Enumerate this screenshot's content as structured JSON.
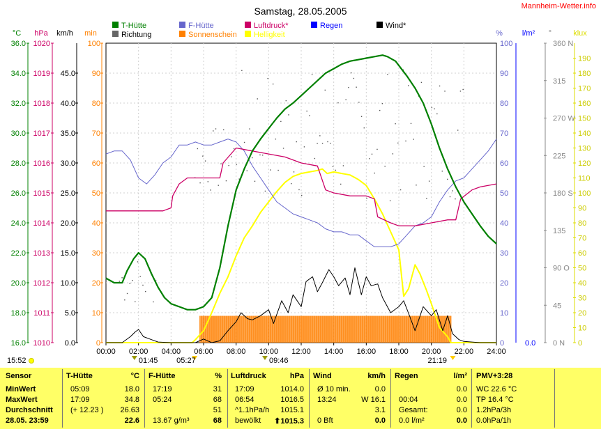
{
  "header": {
    "title": "Samstag, 28.05.2005",
    "site": "Mannheim-Wetter.info"
  },
  "legend": [
    {
      "label": "T-Hütte",
      "color": "#008000"
    },
    {
      "label": "F-Hütte",
      "color": "#6666cc"
    },
    {
      "label": "Luftdruck*",
      "color": "#cc0066"
    },
    {
      "label": "Regen",
      "color": "#0000ff"
    },
    {
      "label": "Wind*",
      "color": "#000000"
    },
    {
      "label": "Richtung",
      "color": "#666666"
    },
    {
      "label": "Sonnenschein",
      "color": "#ff8000"
    },
    {
      "label": "Helligkeit",
      "color": "#ffff00"
    }
  ],
  "axes": {
    "temp_unit": "°C",
    "hpa_unit": "hPa",
    "kmh_unit": "km/h",
    "min_unit": "min",
    "pct_unit": "%",
    "rain_unit": "l/m²",
    "dir_unit": "°",
    "klux_unit": "klux",
    "temp_ticks": [
      "16.0",
      "18.0",
      "20.0",
      "22.0",
      "24.0",
      "26.0",
      "28.0",
      "30.0",
      "32.0",
      "34.0",
      "36.0"
    ],
    "hpa_ticks": [
      "1010",
      "1011",
      "1012",
      "1013",
      "1014",
      "1015",
      "1016",
      "1017",
      "1018",
      "1019",
      "1020"
    ],
    "kmh_ticks": [
      "0.0",
      "5.0",
      "10.0",
      "15.0",
      "20.0",
      "25.0",
      "30.0",
      "35.0",
      "40.0",
      "45.0"
    ],
    "min_ticks": [
      "0",
      "10",
      "20",
      "30",
      "40",
      "50",
      "60",
      "70",
      "80",
      "90",
      "100"
    ],
    "pct_ticks": [
      "0",
      "10",
      "20",
      "30",
      "40",
      "50",
      "60",
      "70",
      "80",
      "90",
      "100"
    ],
    "rain_tick": "0.0",
    "dir_ticks": [
      "0 N",
      "45",
      "90 O",
      "135",
      "180 S",
      "225",
      "270 W",
      "315",
      "360 N"
    ],
    "klux_ticks": [
      "0",
      "10",
      "20",
      "30",
      "40",
      "50",
      "60",
      "70",
      "80",
      "90",
      "100",
      "110",
      "120",
      "130",
      "140",
      "150",
      "160",
      "170",
      "180",
      "190"
    ],
    "x_ticks": [
      "00:00",
      "02:00",
      "04:00",
      "06:00",
      "08:00",
      "10:00",
      "12:00",
      "14:00",
      "16:00",
      "18:00",
      "20:00",
      "22:00",
      "24:00"
    ]
  },
  "annotations": {
    "sunrise_label": "05:27",
    "sunset_label": "21:19",
    "moonset_label": "01:45",
    "moonrise_label": "09:46",
    "last_update": "15:52"
  },
  "chart_data": {
    "type": "line",
    "x_range": [
      "00:00",
      "24:00"
    ],
    "temp_ylim": [
      16,
      36
    ],
    "series": [
      {
        "name": "T-Hütte",
        "unit": "°C",
        "color": "#008000",
        "x": [
          0,
          0.5,
          1,
          1.3,
          1.7,
          2.0,
          2.4,
          2.8,
          3.2,
          3.6,
          4.0,
          4.5,
          5.0,
          5.5,
          6.0,
          6.5,
          7.0,
          7.5,
          8.0,
          8.5,
          9.0,
          9.5,
          10.0,
          10.5,
          11.0,
          11.5,
          12.0,
          12.5,
          13.0,
          13.5,
          14.0,
          14.5,
          15.0,
          15.5,
          16.0,
          16.5,
          17.0,
          17.3,
          17.8,
          18.5,
          19.0,
          19.5,
          20.0,
          20.5,
          21.0,
          21.5,
          22.0,
          22.5,
          23.0,
          23.5,
          24.0
        ],
        "values": [
          20.3,
          20.0,
          20.0,
          20.8,
          21.6,
          22.0,
          21.6,
          20.6,
          19.7,
          19.0,
          18.6,
          18.4,
          18.2,
          18.2,
          18.4,
          19.0,
          21.0,
          23.8,
          26.2,
          27.6,
          28.8,
          29.6,
          30.3,
          31.0,
          31.6,
          32.0,
          32.5,
          33.0,
          33.5,
          34.0,
          34.3,
          34.6,
          34.8,
          34.9,
          35.0,
          35.1,
          35.2,
          35.1,
          34.8,
          33.8,
          33.0,
          32.0,
          30.6,
          29.0,
          27.6,
          26.4,
          25.4,
          24.6,
          23.8,
          23.1,
          22.6
        ]
      },
      {
        "name": "F-Hütte",
        "unit": "%",
        "color": "#6666cc",
        "x": [
          0,
          0.5,
          1.0,
          1.5,
          2.0,
          2.5,
          3.0,
          3.5,
          4.0,
          4.5,
          5.0,
          5.5,
          6.0,
          6.5,
          7.0,
          7.5,
          8.0,
          8.5,
          9.0,
          9.5,
          10.0,
          10.5,
          11.0,
          11.5,
          12.0,
          12.5,
          13.0,
          13.5,
          14.0,
          14.5,
          15.0,
          15.5,
          16.0,
          16.5,
          17.0,
          17.5,
          18.0,
          18.5,
          19.0,
          19.5,
          20.0,
          20.5,
          21.0,
          21.5,
          22.0,
          22.5,
          23.0,
          23.5,
          24.0
        ],
        "values": [
          63,
          64,
          64,
          61,
          55,
          53,
          56,
          60,
          62,
          66,
          66,
          67,
          66,
          66,
          67,
          68,
          67,
          64,
          59,
          55,
          51,
          47,
          45,
          43,
          42,
          41,
          40,
          38,
          37,
          37,
          36,
          36,
          34,
          32,
          32,
          32,
          33,
          36,
          39,
          40,
          42,
          47,
          51,
          54,
          55,
          58,
          61,
          64,
          68
        ]
      },
      {
        "name": "Luftdruck*",
        "unit": "hPa",
        "color": "#cc0066",
        "x": [
          0,
          1,
          2,
          3,
          3.5,
          4.0,
          4.1,
          4.5,
          5.0,
          6.0,
          6.5,
          7.0,
          7.2,
          8.0,
          9.0,
          10.0,
          11.0,
          12.0,
          13.0,
          13.5,
          14.0,
          15.0,
          16.0,
          16.5,
          16.7,
          17.5,
          18.0,
          19.0,
          20.0,
          21.0,
          21.5,
          21.8,
          22.5,
          23.0,
          24.0
        ],
        "values": [
          1014.4,
          1014.4,
          1014.4,
          1014.4,
          1014.4,
          1014.5,
          1014.9,
          1015.3,
          1015.5,
          1015.5,
          1015.5,
          1015.5,
          1016.0,
          1016.5,
          1016.4,
          1016.3,
          1016.2,
          1016.0,
          1015.9,
          1015.1,
          1015.0,
          1014.9,
          1014.9,
          1014.8,
          1014.2,
          1014.0,
          1013.9,
          1013.9,
          1014.0,
          1014.1,
          1014.1,
          1014.8,
          1015.1,
          1015.2,
          1015.3
        ]
      },
      {
        "name": "Wind*",
        "unit": "km/h",
        "color": "#000000",
        "x": [
          0,
          1,
          1.5,
          1.8,
          2.0,
          2.3,
          2.8,
          3.2,
          4,
          5,
          5.5,
          6.0,
          6.5,
          7.0,
          7.5,
          8.0,
          8.3,
          8.7,
          9.0,
          9.5,
          10.0,
          10.3,
          10.8,
          11.2,
          11.5,
          12.0,
          12.3,
          12.7,
          13.0,
          13.3,
          13.7,
          14.0,
          14.3,
          14.7,
          15.0,
          15.3,
          15.7,
          16.0,
          16.3,
          16.7,
          17.0,
          17.5,
          18.0,
          18.3,
          18.7,
          19.0,
          19.5,
          20.0,
          20.3,
          20.7,
          21.0,
          21.3,
          21.7,
          22.0,
          23.0,
          24.0
        ],
        "values": [
          0,
          0,
          1.0,
          1.8,
          2.2,
          1.0,
          0.5,
          0.1,
          0,
          0,
          0,
          0.6,
          0,
          0.3,
          2.0,
          3.5,
          5.0,
          4.0,
          3.8,
          4.5,
          5.5,
          3.2,
          7.0,
          5.0,
          8.0,
          6.0,
          10.2,
          11.0,
          8.5,
          10.0,
          12.2,
          11.0,
          9.5,
          10.8,
          8.0,
          12.5,
          8.0,
          11.0,
          9.5,
          9.8,
          7.5,
          5.0,
          6.0,
          7.0,
          4.2,
          2.0,
          6.0,
          4.5,
          5.5,
          2.0,
          4.5,
          1.5,
          0.5,
          0.2,
          0,
          0
        ]
      },
      {
        "name": "Helligkeit",
        "unit": "klux",
        "color": "#ffff00",
        "x": [
          0,
          5.3,
          5.5,
          6.0,
          6.5,
          7.0,
          7.5,
          8.0,
          8.5,
          9.0,
          9.5,
          10.0,
          10.5,
          11.0,
          11.5,
          12.0,
          12.5,
          13.0,
          13.3,
          13.6,
          14.0,
          14.5,
          15.0,
          15.5,
          16.0,
          16.5,
          17.0,
          17.5,
          18.0,
          18.3,
          18.6,
          19.0,
          19.3,
          19.7,
          20.0,
          20.5,
          21.0,
          21.2,
          24.0
        ],
        "values": [
          0,
          0,
          2,
          8,
          20,
          33,
          44,
          58,
          70,
          78,
          87,
          94,
          101,
          107,
          111,
          113,
          114,
          115,
          116,
          113,
          114,
          113,
          112,
          109,
          105,
          96,
          86,
          74,
          62,
          31,
          36,
          52,
          46,
          35,
          26,
          10,
          4,
          0,
          0
        ]
      },
      {
        "name": "Sonnenschein",
        "unit": "min",
        "color": "#ff8000",
        "x": [
          5.75,
          21.2
        ],
        "values": [
          5,
          5
        ]
      }
    ]
  },
  "stats": {
    "sensor": {
      "header": "Sensor",
      "rows": [
        "MinWert",
        "MaxWert",
        "Durchschnitt",
        "28.05. 23:59"
      ]
    },
    "thuette": {
      "header": "T-Hütte",
      "unit": "°C",
      "rows": [
        [
          "05:09",
          "18.0"
        ],
        [
          "17:09",
          "34.8"
        ],
        [
          "(+ 12.23 )",
          "26.63"
        ],
        [
          "",
          "22.6"
        ]
      ]
    },
    "fhuette": {
      "header": "F-Hütte",
      "unit": "%",
      "rows": [
        [
          "17:19",
          "31"
        ],
        [
          "05:24",
          "68"
        ],
        [
          "",
          "51"
        ],
        [
          "13.67 g/m³",
          "68"
        ]
      ]
    },
    "druck": {
      "header": "Luftdruck",
      "unit": "hPa",
      "rows": [
        [
          "17:09",
          "1014.0"
        ],
        [
          "06:54",
          "1016.5"
        ],
        [
          "^1.1hPa/h",
          "1015.1"
        ],
        [
          "bewölkt",
          "⬆1015.3"
        ]
      ]
    },
    "wind": {
      "header": "Wind",
      "unit": "km/h",
      "rows": [
        [
          "Ø 10 min.",
          "0.0"
        ],
        [
          "13:24",
          "W 16.1"
        ],
        [
          "",
          "3.1"
        ],
        [
          "0 Bft",
          "0.0"
        ]
      ]
    },
    "regen": {
      "header": "Regen",
      "unit": "l/m²",
      "rows": [
        [
          "",
          "0.0"
        ],
        [
          "00:04",
          "0.0"
        ],
        [
          "Gesamt:",
          "0.0"
        ],
        [
          "0.0 l/m²",
          "0.0"
        ]
      ]
    },
    "pmv": {
      "header": "PMV+3:28",
      "rows": [
        "WC 22.6 °C",
        "TP 16.4 °C",
        "1.2hPa/3h",
        "0.0hPa/1h"
      ]
    }
  }
}
